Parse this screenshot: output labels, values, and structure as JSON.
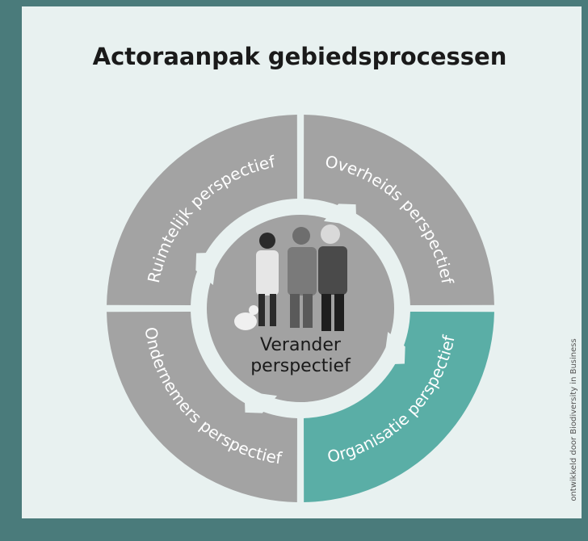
{
  "header": {
    "title": "Actoraanpak gebiedsprocessen"
  },
  "segments": [
    {
      "label": "Ruimtelijk perspectief"
    },
    {
      "label": "Overheids perspectief"
    },
    {
      "label": "Organisatie perspectief"
    },
    {
      "label": "Ondernemers perspectief"
    }
  ],
  "center": {
    "lines": [
      "Verander",
      "perspectief"
    ]
  },
  "credit": "ontwikkeld door Biodiversity in Business"
}
